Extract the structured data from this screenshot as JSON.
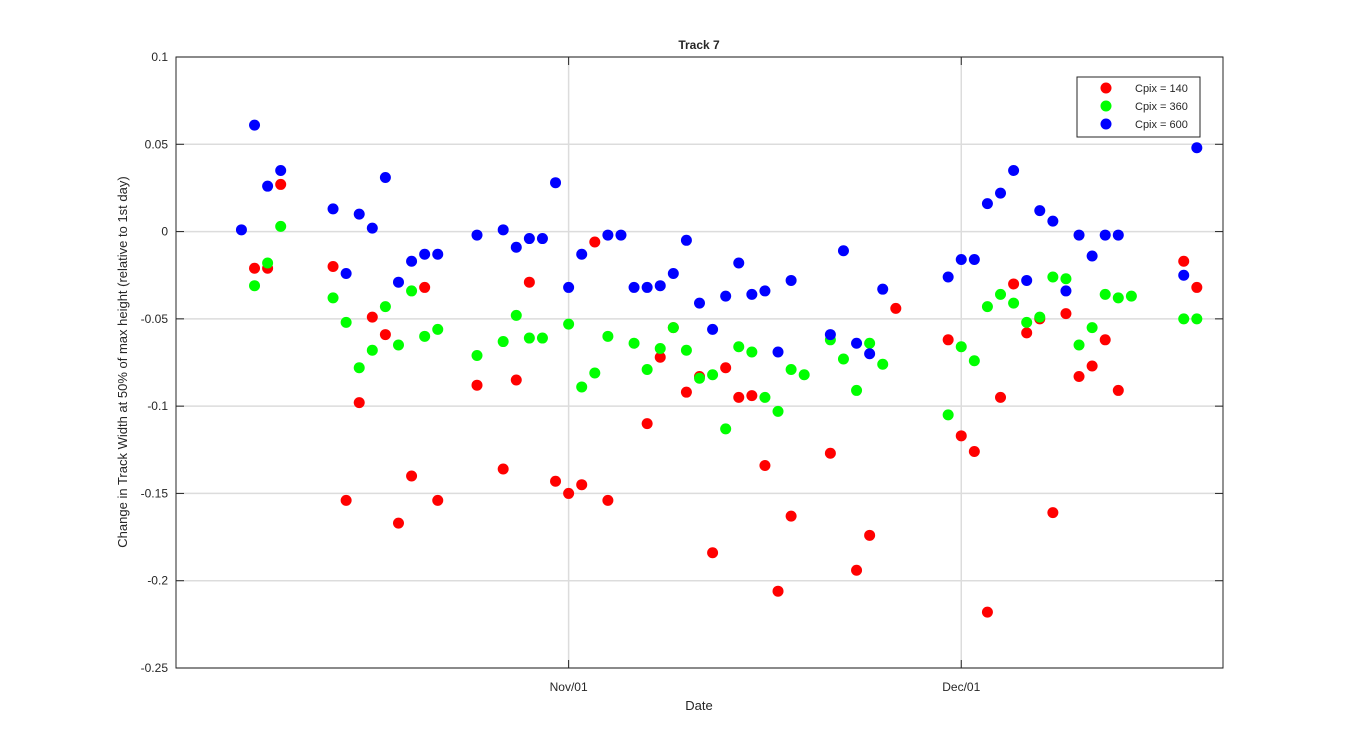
{
  "chart_data": {
    "type": "scatter",
    "title": "Track 7",
    "xlabel": "Date",
    "ylabel": "Change in Track Width at 50% of max height (relative to 1st day)",
    "xlim": [
      "2015-10-02",
      "2015-12-21"
    ],
    "ylim": [
      -0.25,
      0.1
    ],
    "y_ticks": [
      0.1,
      0.05,
      0,
      -0.05,
      -0.1,
      -0.15,
      -0.2,
      -0.25
    ],
    "y_tick_labels": [
      "0.1",
      "0.05",
      "0",
      "-0.05",
      "-0.1",
      "-0.15",
      "-0.2",
      "-0.25"
    ],
    "x_ticks": [
      "2015-11-01",
      "2015-12-01"
    ],
    "x_tick_labels": [
      "Nov/01",
      "Dec/01"
    ],
    "grid": true,
    "legend_position": "top-right",
    "series": [
      {
        "name": "Cpix = 140",
        "color": "#ff0000",
        "x": [
          "2015-10-08",
          "2015-10-09",
          "2015-10-10",
          "2015-10-14",
          "2015-10-15",
          "2015-10-16",
          "2015-10-17",
          "2015-10-18",
          "2015-10-19",
          "2015-10-20",
          "2015-10-21",
          "2015-10-22",
          "2015-10-25",
          "2015-10-27",
          "2015-10-28",
          "2015-10-29",
          "2015-10-31",
          "2015-11-01",
          "2015-11-02",
          "2015-11-03",
          "2015-11-04",
          "2015-11-07",
          "2015-11-08",
          "2015-11-09",
          "2015-11-10",
          "2015-11-11",
          "2015-11-12",
          "2015-11-13",
          "2015-11-14",
          "2015-11-15",
          "2015-11-16",
          "2015-11-17",
          "2015-11-18",
          "2015-11-21",
          "2015-11-23",
          "2015-11-24",
          "2015-11-26",
          "2015-11-30",
          "2015-12-01",
          "2015-12-02",
          "2015-12-03",
          "2015-12-04",
          "2015-12-05",
          "2015-12-06",
          "2015-12-07",
          "2015-12-08",
          "2015-12-09",
          "2015-12-10",
          "2015-12-11",
          "2015-12-12",
          "2015-12-13",
          "2015-12-18",
          "2015-12-19"
        ],
        "y": [
          -0.021,
          -0.021,
          0.027,
          -0.02,
          -0.154,
          -0.098,
          -0.049,
          -0.059,
          -0.167,
          -0.14,
          -0.032,
          -0.154,
          -0.088,
          -0.136,
          -0.085,
          -0.029,
          -0.143,
          -0.15,
          -0.145,
          -0.006,
          -0.154,
          -0.11,
          -0.072,
          -0.055,
          -0.092,
          -0.083,
          -0.184,
          -0.078,
          -0.095,
          -0.094,
          -0.134,
          -0.206,
          -0.163,
          -0.127,
          -0.194,
          -0.174,
          -0.044,
          -0.062,
          -0.117,
          -0.126,
          -0.218,
          -0.095,
          -0.03,
          -0.058,
          -0.05,
          -0.161,
          -0.047,
          -0.083,
          -0.077,
          -0.062,
          -0.091,
          -0.017,
          -0.032
        ]
      },
      {
        "name": "Cpix = 360",
        "color": "#00ff00",
        "x": [
          "2015-10-08",
          "2015-10-09",
          "2015-10-10",
          "2015-10-14",
          "2015-10-15",
          "2015-10-16",
          "2015-10-17",
          "2015-10-18",
          "2015-10-19",
          "2015-10-20",
          "2015-10-21",
          "2015-10-22",
          "2015-10-25",
          "2015-10-27",
          "2015-10-28",
          "2015-10-29",
          "2015-10-30",
          "2015-11-01",
          "2015-11-02",
          "2015-11-03",
          "2015-11-04",
          "2015-11-06",
          "2015-11-07",
          "2015-11-08",
          "2015-11-09",
          "2015-11-10",
          "2015-11-11",
          "2015-11-12",
          "2015-11-13",
          "2015-11-14",
          "2015-11-15",
          "2015-11-16",
          "2015-11-17",
          "2015-11-18",
          "2015-11-19",
          "2015-11-21",
          "2015-11-22",
          "2015-11-23",
          "2015-11-24",
          "2015-11-25",
          "2015-11-30",
          "2015-12-01",
          "2015-12-02",
          "2015-12-03",
          "2015-12-04",
          "2015-12-05",
          "2015-12-06",
          "2015-12-07",
          "2015-12-08",
          "2015-12-09",
          "2015-12-10",
          "2015-12-11",
          "2015-12-12",
          "2015-12-13",
          "2015-12-14",
          "2015-12-18",
          "2015-12-19"
        ],
        "y": [
          -0.031,
          -0.018,
          0.003,
          -0.038,
          -0.052,
          -0.078,
          -0.068,
          -0.043,
          -0.065,
          -0.034,
          -0.06,
          -0.056,
          -0.071,
          -0.063,
          -0.048,
          -0.061,
          -0.061,
          -0.053,
          -0.089,
          -0.081,
          -0.06,
          -0.064,
          -0.079,
          -0.067,
          -0.055,
          -0.068,
          -0.084,
          -0.082,
          -0.113,
          -0.066,
          -0.069,
          -0.095,
          -0.103,
          -0.079,
          -0.082,
          -0.062,
          -0.073,
          -0.091,
          -0.064,
          -0.076,
          -0.105,
          -0.066,
          -0.074,
          -0.043,
          -0.036,
          -0.041,
          -0.052,
          -0.049,
          -0.026,
          -0.027,
          -0.065,
          -0.055,
          -0.036,
          -0.038,
          -0.037,
          -0.05,
          -0.05
        ]
      },
      {
        "name": "Cpix = 600",
        "color": "#0000ff",
        "x": [
          "2015-10-07",
          "2015-10-08",
          "2015-10-09",
          "2015-10-10",
          "2015-10-14",
          "2015-10-15",
          "2015-10-16",
          "2015-10-17",
          "2015-10-18",
          "2015-10-19",
          "2015-10-20",
          "2015-10-21",
          "2015-10-22",
          "2015-10-25",
          "2015-10-27",
          "2015-10-28",
          "2015-10-29",
          "2015-10-30",
          "2015-10-31",
          "2015-11-01",
          "2015-11-02",
          "2015-11-04",
          "2015-11-05",
          "2015-11-06",
          "2015-11-07",
          "2015-11-08",
          "2015-11-09",
          "2015-11-10",
          "2015-11-11",
          "2015-11-12",
          "2015-11-13",
          "2015-11-14",
          "2015-11-15",
          "2015-11-16",
          "2015-11-17",
          "2015-11-18",
          "2015-11-21",
          "2015-11-22",
          "2015-11-23",
          "2015-11-24",
          "2015-11-25",
          "2015-11-30",
          "2015-12-01",
          "2015-12-02",
          "2015-12-03",
          "2015-12-04",
          "2015-12-05",
          "2015-12-06",
          "2015-12-07",
          "2015-12-08",
          "2015-12-09",
          "2015-12-10",
          "2015-12-11",
          "2015-12-12",
          "2015-12-13",
          "2015-12-18",
          "2015-12-19"
        ],
        "y": [
          0.001,
          0.061,
          0.026,
          0.035,
          0.013,
          -0.024,
          0.01,
          0.002,
          0.031,
          -0.029,
          -0.017,
          -0.013,
          -0.013,
          -0.002,
          0.001,
          -0.009,
          -0.004,
          -0.004,
          0.028,
          -0.032,
          -0.013,
          -0.002,
          -0.002,
          -0.032,
          -0.032,
          -0.031,
          -0.024,
          -0.005,
          -0.041,
          -0.056,
          -0.037,
          -0.018,
          -0.036,
          -0.034,
          -0.069,
          -0.028,
          -0.059,
          -0.011,
          -0.064,
          -0.07,
          -0.033,
          -0.026,
          -0.016,
          -0.016,
          0.016,
          0.022,
          0.035,
          -0.028,
          0.012,
          0.006,
          -0.034,
          -0.002,
          -0.014,
          -0.002,
          -0.002,
          -0.025,
          0.048
        ]
      }
    ]
  }
}
